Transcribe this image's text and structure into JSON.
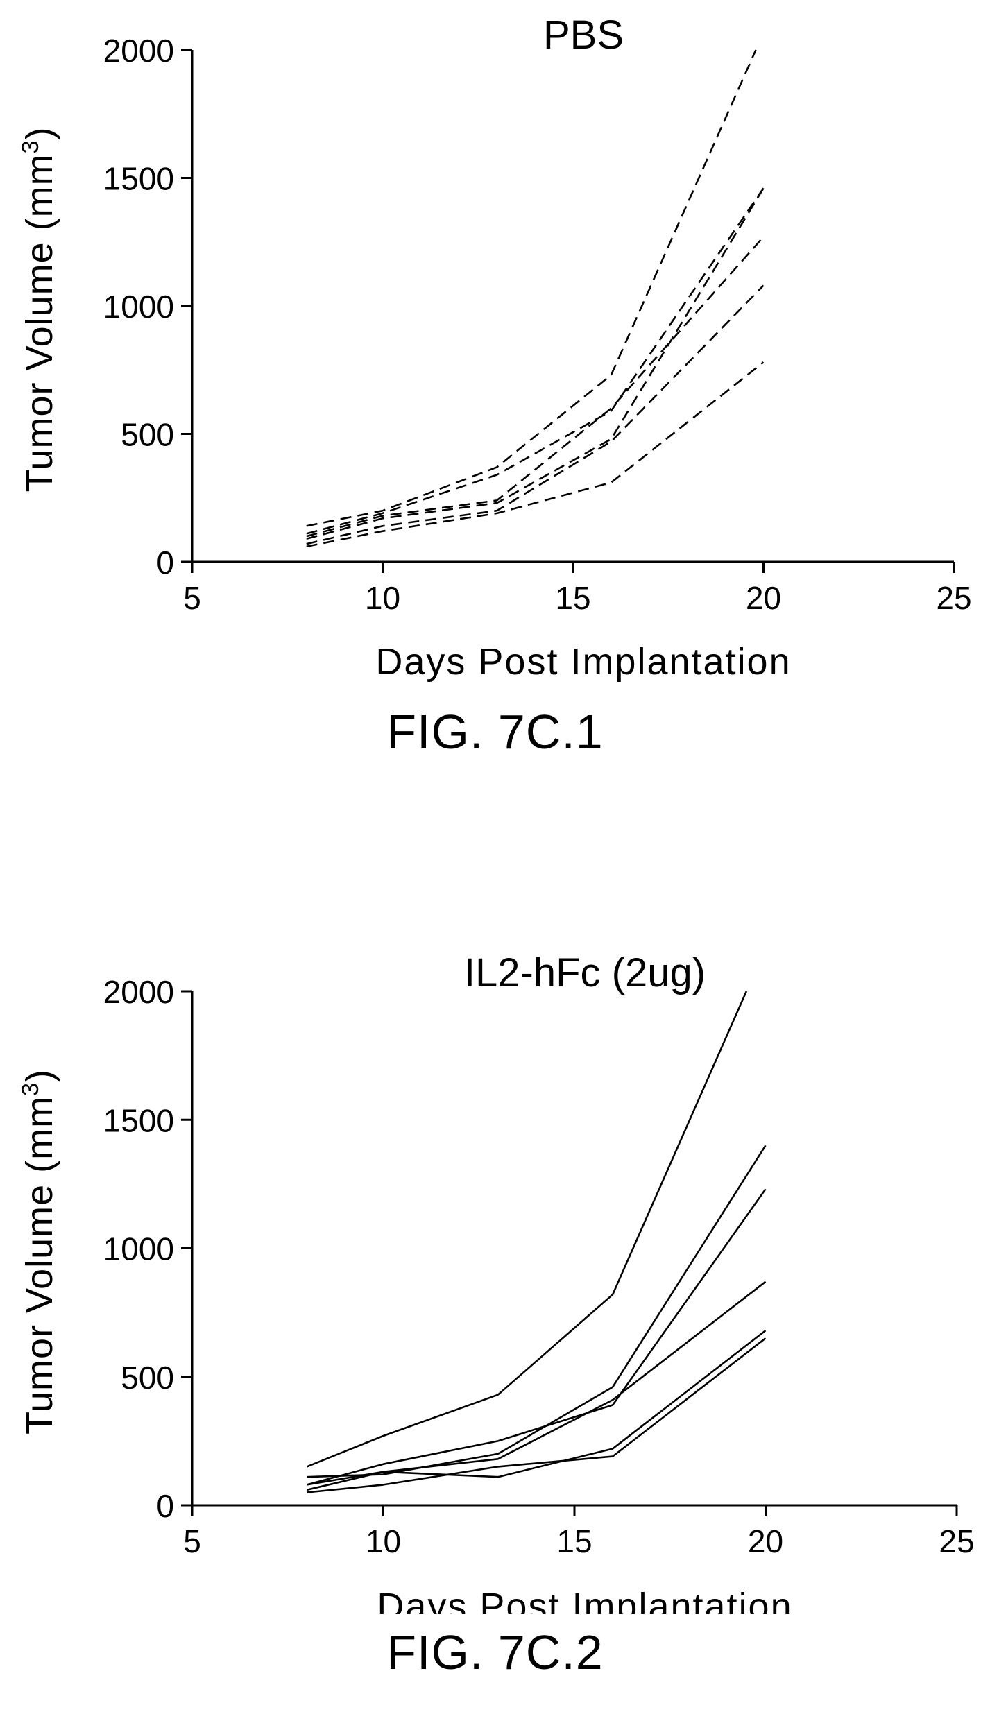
{
  "chart_data": [
    {
      "type": "line",
      "title": "PBS",
      "xlabel": "Days Post Implantation",
      "ylabel": "Tumor Volume (mm³)",
      "ylabel_base": "Tumor Volume (mm",
      "ylabel_sup": "3",
      "ylabel_close": ")",
      "caption": "FIG. 7C.1",
      "line_style": "dashed",
      "xlim": [
        5,
        25
      ],
      "ylim": [
        0,
        2000
      ],
      "xticks": [
        5,
        10,
        15,
        20,
        25
      ],
      "yticks": [
        0,
        500,
        1000,
        1500,
        2000
      ],
      "series": [
        {
          "x": [
            8,
            10,
            13,
            16,
            19.8
          ],
          "y": [
            140,
            200,
            370,
            730,
            2000
          ]
        },
        {
          "x": [
            8,
            10,
            13,
            16,
            20
          ],
          "y": [
            110,
            190,
            340,
            590,
            1460
          ]
        },
        {
          "x": [
            8,
            10,
            13,
            16,
            20
          ],
          "y": [
            100,
            180,
            240,
            600,
            1270
          ]
        },
        {
          "x": [
            8,
            10,
            13,
            16,
            20
          ],
          "y": [
            90,
            170,
            230,
            480,
            1460
          ]
        },
        {
          "x": [
            8,
            10,
            13,
            16,
            20
          ],
          "y": [
            70,
            140,
            200,
            470,
            1080
          ]
        },
        {
          "x": [
            8,
            10,
            13,
            16,
            20
          ],
          "y": [
            60,
            120,
            190,
            310,
            780
          ]
        }
      ]
    },
    {
      "type": "line",
      "title": "IL2-hFc (2ug)",
      "xlabel": "Days Post Implantation",
      "ylabel": "Tumor Volume (mm³)",
      "ylabel_base": "Tumor Volume (mm",
      "ylabel_sup": "3",
      "ylabel_close": ")",
      "caption": "FIG. 7C.2",
      "line_style": "solid",
      "xlim": [
        5,
        25
      ],
      "ylim": [
        0,
        2000
      ],
      "xticks": [
        5,
        10,
        15,
        20,
        25
      ],
      "yticks": [
        0,
        500,
        1000,
        1500,
        2000
      ],
      "series": [
        {
          "x": [
            8,
            10,
            13,
            16,
            19.5
          ],
          "y": [
            150,
            270,
            430,
            820,
            2000
          ]
        },
        {
          "x": [
            8,
            10,
            13,
            16,
            20
          ],
          "y": [
            110,
            120,
            200,
            460,
            1400
          ]
        },
        {
          "x": [
            8,
            10,
            13,
            16,
            20
          ],
          "y": [
            80,
            160,
            250,
            390,
            1230
          ]
        },
        {
          "x": [
            8,
            10,
            13,
            16,
            20
          ],
          "y": [
            60,
            130,
            180,
            410,
            870
          ]
        },
        {
          "x": [
            8,
            10,
            13,
            16,
            20
          ],
          "y": [
            80,
            130,
            110,
            220,
            680
          ]
        },
        {
          "x": [
            8,
            10,
            13,
            16,
            20
          ],
          "y": [
            50,
            80,
            150,
            190,
            650
          ]
        }
      ]
    }
  ]
}
